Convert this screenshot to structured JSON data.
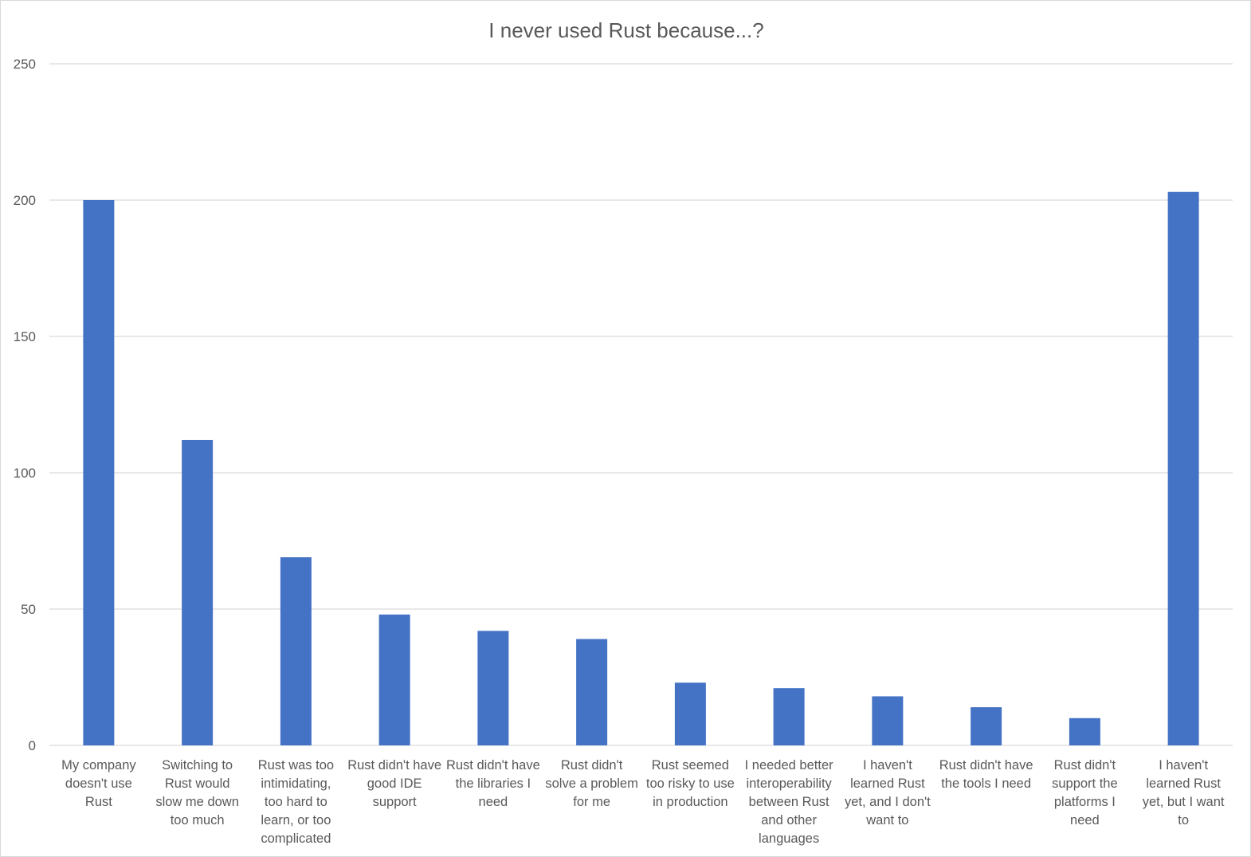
{
  "chart_data": {
    "type": "bar",
    "title": "I never used Rust because...?",
    "xlabel": "",
    "ylabel": "",
    "ylim": [
      0,
      250
    ],
    "yticks": [
      0,
      50,
      100,
      150,
      200,
      250
    ],
    "grid": true,
    "legend": "none",
    "categories": [
      [
        "My company",
        "doesn't use",
        "Rust"
      ],
      [
        "Switching to",
        "Rust would",
        "slow me down",
        "too much"
      ],
      [
        "Rust was too",
        "intimidating,",
        "too hard to",
        "learn, or too",
        "complicated"
      ],
      [
        "Rust didn't have",
        "good IDE",
        "support"
      ],
      [
        "Rust didn't have",
        "the libraries I",
        "need"
      ],
      [
        "Rust didn't",
        "solve a problem",
        "for me"
      ],
      [
        "Rust seemed",
        "too risky to use",
        "in production"
      ],
      [
        "I needed better",
        "interoperability",
        "between Rust",
        "and other",
        "languages"
      ],
      [
        "I haven't",
        "learned Rust",
        "yet, and I don't",
        "want to"
      ],
      [
        "Rust didn't have",
        "the tools I need"
      ],
      [
        "Rust didn't",
        "support the",
        "platforms I",
        "need"
      ],
      [
        "I haven't",
        "learned Rust",
        "yet, but I want",
        "to"
      ]
    ],
    "values": [
      200,
      112,
      69,
      48,
      42,
      39,
      23,
      21,
      18,
      14,
      10,
      203
    ],
    "bar_color": "#4472c4",
    "grid_color": "#d9d9d9",
    "text_color": "#595959"
  }
}
